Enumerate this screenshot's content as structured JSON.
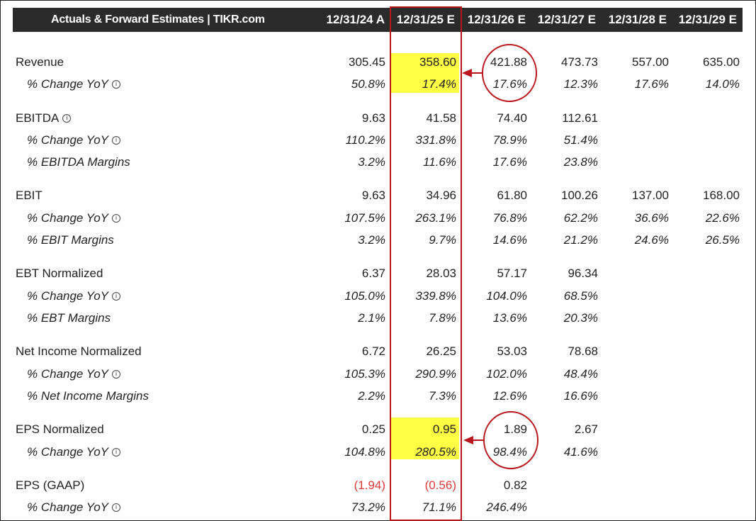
{
  "header": {
    "title": "Actuals & Forward Estimates | TIKR.com",
    "columns": [
      "12/31/24 A",
      "12/31/25 E",
      "12/31/26 E",
      "12/31/27 E",
      "12/31/28 E",
      "12/31/29 E"
    ]
  },
  "info_glyph": "i",
  "rows": [
    {
      "label": "Revenue",
      "values": [
        "305.45",
        "358.60",
        "421.88",
        "473.73",
        "557.00",
        "635.00"
      ]
    },
    {
      "label": "% Change YoY",
      "values": [
        "50.8%",
        "17.4%",
        "17.6%",
        "12.3%",
        "17.6%",
        "14.0%"
      ]
    },
    {
      "label": "EBITDA",
      "values": [
        "9.63",
        "41.58",
        "74.40",
        "112.61",
        "",
        ""
      ]
    },
    {
      "label": "% Change YoY",
      "values": [
        "110.2%",
        "331.8%",
        "78.9%",
        "51.4%",
        "",
        ""
      ]
    },
    {
      "label": "% EBITDA Margins",
      "values": [
        "3.2%",
        "11.6%",
        "17.6%",
        "23.8%",
        "",
        ""
      ]
    },
    {
      "label": "EBIT",
      "values": [
        "9.63",
        "34.96",
        "61.80",
        "100.26",
        "137.00",
        "168.00"
      ]
    },
    {
      "label": "% Change YoY",
      "values": [
        "107.5%",
        "263.1%",
        "76.8%",
        "62.2%",
        "36.6%",
        "22.6%"
      ]
    },
    {
      "label": "% EBIT Margins",
      "values": [
        "3.2%",
        "9.7%",
        "14.6%",
        "21.2%",
        "24.6%",
        "26.5%"
      ]
    },
    {
      "label": "EBT Normalized",
      "values": [
        "6.37",
        "28.03",
        "57.17",
        "96.34",
        "",
        ""
      ]
    },
    {
      "label": "% Change YoY",
      "values": [
        "105.0%",
        "339.8%",
        "104.0%",
        "68.5%",
        "",
        ""
      ]
    },
    {
      "label": "% EBT Margins",
      "values": [
        "2.1%",
        "7.8%",
        "13.6%",
        "20.3%",
        "",
        ""
      ]
    },
    {
      "label": "Net Income Normalized",
      "values": [
        "6.72",
        "26.25",
        "53.03",
        "78.68",
        "",
        ""
      ]
    },
    {
      "label": "% Change YoY",
      "values": [
        "105.3%",
        "290.9%",
        "102.0%",
        "48.4%",
        "",
        ""
      ]
    },
    {
      "label": "% Net Income Margins",
      "values": [
        "2.2%",
        "7.3%",
        "12.6%",
        "16.6%",
        "",
        ""
      ]
    },
    {
      "label": "EPS Normalized",
      "values": [
        "0.25",
        "0.95",
        "1.89",
        "2.67",
        "",
        ""
      ]
    },
    {
      "label": "% Change YoY",
      "values": [
        "104.8%",
        "280.5%",
        "98.4%",
        "41.6%",
        "",
        ""
      ]
    },
    {
      "label": "EPS (GAAP)",
      "values": [
        "(1.94)",
        "(0.56)",
        "0.82",
        "",
        "",
        ""
      ]
    },
    {
      "label": "% Change YoY",
      "values": [
        "73.2%",
        "71.1%",
        "246.4%",
        "",
        "",
        ""
      ]
    }
  ],
  "colors": {
    "header_bg": "#2b2b2b",
    "highlight": "#ffff44",
    "annotation_red": "#b8161c",
    "negative": "#e03a3a"
  }
}
